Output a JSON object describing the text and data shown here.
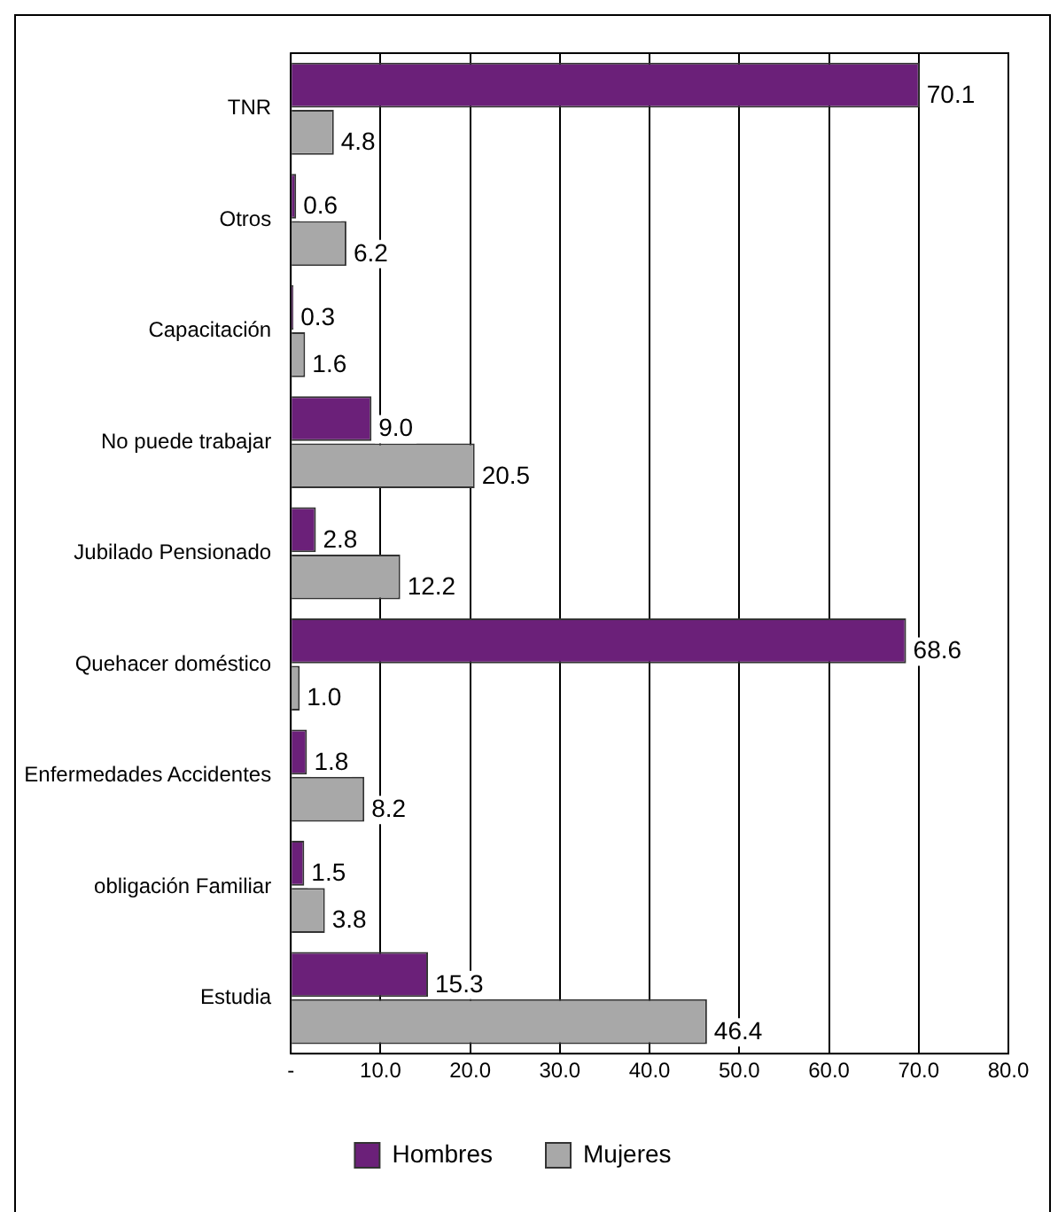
{
  "chart_data": {
    "type": "bar",
    "orientation": "horizontal",
    "categories": [
      "TNR",
      "Otros",
      "Capacitación",
      "No puede trabajar",
      "Jubilado Pensionado",
      "Quehacer doméstico",
      "Enfermedades Accidentes",
      "obligación Familiar",
      "Estudia"
    ],
    "series": [
      {
        "name": "Hombres",
        "color": "#6b2079",
        "values": [
          70.1,
          0.6,
          0.3,
          9.0,
          2.8,
          68.6,
          1.8,
          1.5,
          15.3
        ],
        "value_labels": [
          "70.1",
          "0.6",
          "0.3",
          "9.0",
          "2.8",
          "68.6",
          "1.8",
          "1.5",
          "15.3"
        ]
      },
      {
        "name": "Mujeres",
        "color": "#a8a8a8",
        "values": [
          4.8,
          6.2,
          1.6,
          20.5,
          12.2,
          1.0,
          8.2,
          3.8,
          46.4
        ],
        "value_labels": [
          "4.8",
          "6.2",
          "1.6",
          "20.5",
          "12.2",
          "1.0",
          "8.2",
          "3.8",
          "46.4"
        ]
      }
    ],
    "xlim": [
      0,
      80
    ],
    "xticks": [
      {
        "value": 0,
        "label": "-"
      },
      {
        "value": 10,
        "label": "10.0"
      },
      {
        "value": 20,
        "label": "20.0"
      },
      {
        "value": 30,
        "label": "30.0"
      },
      {
        "value": 40,
        "label": "40.0"
      },
      {
        "value": 50,
        "label": "50.0"
      },
      {
        "value": 60,
        "label": "60.0"
      },
      {
        "value": 70,
        "label": "70.0"
      },
      {
        "value": 80,
        "label": "80.0"
      }
    ],
    "grid": "x",
    "legend": "bottom"
  }
}
